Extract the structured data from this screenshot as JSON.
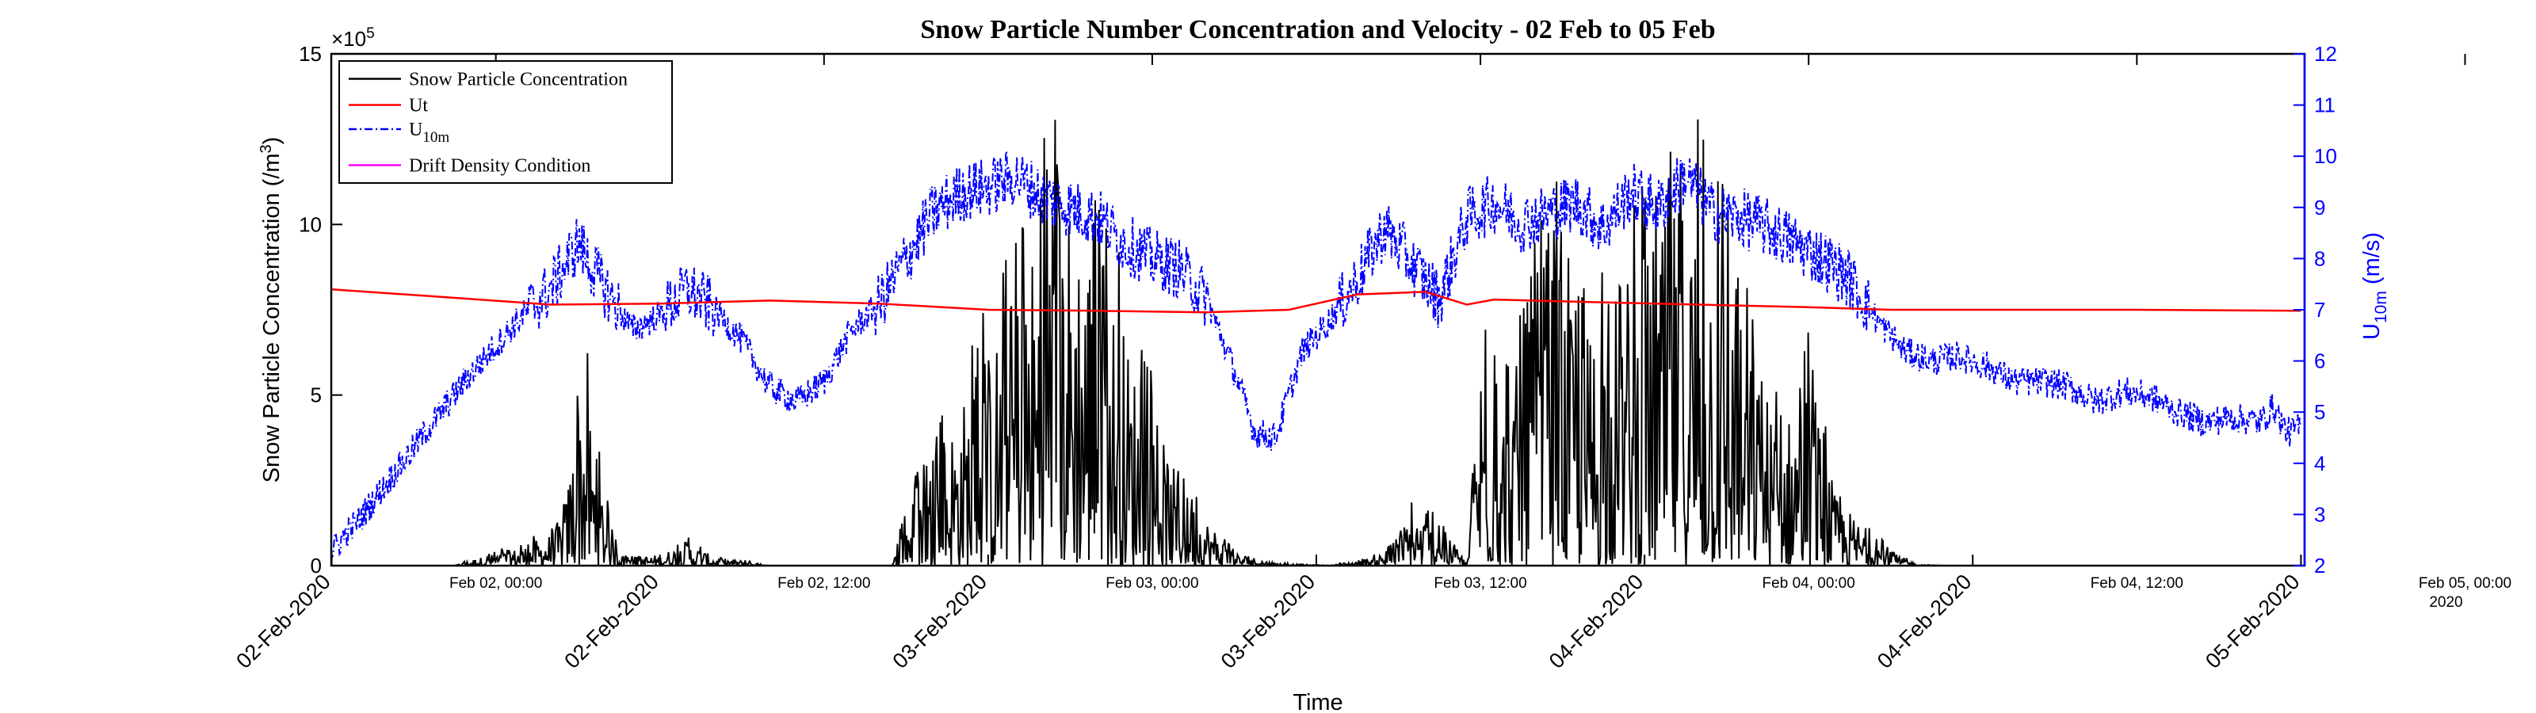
{
  "chart_data": {
    "type": "line",
    "title": "Snow Particle Number Concentration and Velocity - 02 Feb to 05 Feb",
    "xlabel": "Time",
    "x_range": [
      "2020-02-01T23:59",
      "2020-02-05T00:08"
    ],
    "x_ticks_bottom": [
      {
        "t": "2020-02-02T00:00",
        "label": "02-Feb-2020"
      },
      {
        "t": "2020-02-02T12:00",
        "label": "02-Feb-2020"
      },
      {
        "t": "2020-02-03T00:00",
        "label": "03-Feb-2020"
      },
      {
        "t": "2020-02-03T12:00",
        "label": "03-Feb-2020"
      },
      {
        "t": "2020-02-04T00:00",
        "label": "04-Feb-2020"
      },
      {
        "t": "2020-02-04T12:00",
        "label": "04-Feb-2020"
      },
      {
        "t": "2020-02-05T00:00",
        "label": "05-Feb-2020"
      }
    ],
    "x_ticks_top": [
      {
        "t": "2020-02-02T06:00",
        "label": "Feb 02, 00:00"
      },
      {
        "t": "2020-02-02T18:00",
        "label": "Feb 02, 12:00"
      },
      {
        "t": "2020-02-03T06:00",
        "label": "Feb 03, 00:00"
      },
      {
        "t": "2020-02-03T18:00",
        "label": "Feb 03, 12:00"
      },
      {
        "t": "2020-02-04T06:00",
        "label": "Feb 04, 00:00"
      },
      {
        "t": "2020-02-04T18:00",
        "label": "Feb 04, 12:00"
      },
      {
        "t": "2020-02-05T06:00",
        "label": "Feb 05, 00:00"
      }
    ],
    "x_top_year": "2020",
    "y_left": {
      "label": "Snow Particle Concentration (/m",
      "label_sup": "3",
      "label_end": ")",
      "ylim": [
        0,
        1500000
      ],
      "multiplier_base": "×10",
      "multiplier_exp": "5",
      "ticks": [
        {
          "v": 0,
          "label": "0"
        },
        {
          "v": 500000,
          "label": "5"
        },
        {
          "v": 1000000,
          "label": "10"
        },
        {
          "v": 1500000,
          "label": "15"
        }
      ]
    },
    "y_right": {
      "label": "U",
      "label_sub": "10m",
      "label_end": " (m/s)",
      "ylim": [
        2,
        12
      ],
      "ticks": [
        2,
        3,
        4,
        5,
        6,
        7,
        8,
        9,
        10,
        11,
        12
      ],
      "color": "#0000ff"
    },
    "legend": {
      "position": "top-left",
      "entries": [
        {
          "name": "Snow Particle Concentration",
          "color": "#000000",
          "style": "solid"
        },
        {
          "name": "Ut",
          "color": "#ff0000",
          "style": "solid"
        },
        {
          "name": "U",
          "sub": "10m",
          "color": "#0000ff",
          "style": "dashdot"
        },
        {
          "name": "Drift Density Condition",
          "color": "#ff00ff",
          "style": "solid"
        }
      ]
    },
    "series": [
      {
        "name": "Snow Particle Concentration",
        "axis": "left",
        "color": "#000000",
        "envelope": [
          {
            "t": "2020-02-02T00:00",
            "v": 0
          },
          {
            "t": "2020-02-02T04:30",
            "v": 0
          },
          {
            "t": "2020-02-02T05:00",
            "v": 20000
          },
          {
            "t": "2020-02-02T07:00",
            "v": 70000
          },
          {
            "t": "2020-02-02T08:00",
            "v": 120000
          },
          {
            "t": "2020-02-02T08:30",
            "v": 200000
          },
          {
            "t": "2020-02-02T09:10",
            "v": 750000
          },
          {
            "t": "2020-02-02T09:45",
            "v": 350000
          },
          {
            "t": "2020-02-02T10:30",
            "v": 30000
          },
          {
            "t": "2020-02-02T12:00",
            "v": 40000
          },
          {
            "t": "2020-02-02T13:00",
            "v": 90000
          },
          {
            "t": "2020-02-02T14:00",
            "v": 30000
          },
          {
            "t": "2020-02-02T15:00",
            "v": 20000
          },
          {
            "t": "2020-02-02T16:00",
            "v": 0
          },
          {
            "t": "2020-02-02T20:30",
            "v": 0
          },
          {
            "t": "2020-02-02T21:00",
            "v": 200000
          },
          {
            "t": "2020-02-02T23:00",
            "v": 600000
          },
          {
            "t": "2020-02-03T00:30",
            "v": 900000
          },
          {
            "t": "2020-02-03T02:00",
            "v": 1300000
          },
          {
            "t": "2020-02-03T03:00",
            "v": 1370000
          },
          {
            "t": "2020-02-03T04:00",
            "v": 1200000
          },
          {
            "t": "2020-02-03T05:30",
            "v": 700000
          },
          {
            "t": "2020-02-03T07:00",
            "v": 300000
          },
          {
            "t": "2020-02-03T09:00",
            "v": 50000
          },
          {
            "t": "2020-02-03T10:30",
            "v": 10000
          },
          {
            "t": "2020-02-03T12:30",
            "v": 0
          },
          {
            "t": "2020-02-03T14:30",
            "v": 40000
          },
          {
            "t": "2020-02-03T15:30",
            "v": 200000
          },
          {
            "t": "2020-02-03T16:30",
            "v": 150000
          },
          {
            "t": "2020-02-03T17:30",
            "v": 0
          },
          {
            "t": "2020-02-03T18:00",
            "v": 800000
          },
          {
            "t": "2020-02-03T19:00",
            "v": 600000
          },
          {
            "t": "2020-02-03T20:30",
            "v": 1270000
          },
          {
            "t": "2020-02-03T21:30",
            "v": 800000
          },
          {
            "t": "2020-02-03T22:30",
            "v": 1000000
          },
          {
            "t": "2020-02-04T00:00",
            "v": 1150000
          },
          {
            "t": "2020-02-04T01:30",
            "v": 1400000
          },
          {
            "t": "2020-02-04T02:30",
            "v": 1300000
          },
          {
            "t": "2020-02-04T03:30",
            "v": 900000
          },
          {
            "t": "2020-02-04T05:00",
            "v": 500000
          },
          {
            "t": "2020-02-04T06:00",
            "v": 700000
          },
          {
            "t": "2020-02-04T07:00",
            "v": 250000
          },
          {
            "t": "2020-02-04T08:00",
            "v": 150000
          },
          {
            "t": "2020-02-04T09:00",
            "v": 50000
          },
          {
            "t": "2020-02-04T10:00",
            "v": 5000
          },
          {
            "t": "2020-02-04T11:00",
            "v": 0
          },
          {
            "t": "2020-02-05T00:00",
            "v": 0
          }
        ]
      },
      {
        "name": "Ut",
        "axis": "right",
        "color": "#ff0000",
        "points": [
          {
            "t": "2020-02-02T00:00",
            "v": 7.4
          },
          {
            "t": "2020-02-02T04:00",
            "v": 7.25
          },
          {
            "t": "2020-02-02T08:00",
            "v": 7.1
          },
          {
            "t": "2020-02-02T12:00",
            "v": 7.12
          },
          {
            "t": "2020-02-02T16:00",
            "v": 7.18
          },
          {
            "t": "2020-02-02T20:00",
            "v": 7.12
          },
          {
            "t": "2020-02-03T00:00",
            "v": 7.0
          },
          {
            "t": "2020-02-03T04:00",
            "v": 6.98
          },
          {
            "t": "2020-02-03T08:00",
            "v": 6.95
          },
          {
            "t": "2020-02-03T11:00",
            "v": 7.0
          },
          {
            "t": "2020-02-03T13:30",
            "v": 7.3
          },
          {
            "t": "2020-02-03T16:00",
            "v": 7.35
          },
          {
            "t": "2020-02-03T17:30",
            "v": 7.1
          },
          {
            "t": "2020-02-03T18:30",
            "v": 7.2
          },
          {
            "t": "2020-02-03T22:00",
            "v": 7.15
          },
          {
            "t": "2020-02-04T02:00",
            "v": 7.1
          },
          {
            "t": "2020-02-04T06:00",
            "v": 7.05
          },
          {
            "t": "2020-02-04T09:00",
            "v": 7.0
          },
          {
            "t": "2020-02-04T14:00",
            "v": 7.0
          },
          {
            "t": "2020-02-04T18:00",
            "v": 7.0
          },
          {
            "t": "2020-02-05T00:00",
            "v": 6.98
          }
        ]
      },
      {
        "name": "U10m",
        "axis": "right",
        "color": "#0000ff",
        "style": "dashdot",
        "points": [
          {
            "t": "2020-02-02T00:00",
            "v": 2.3
          },
          {
            "t": "2020-02-02T01:00",
            "v": 2.9
          },
          {
            "t": "2020-02-02T02:00",
            "v": 3.6
          },
          {
            "t": "2020-02-02T03:00",
            "v": 4.3
          },
          {
            "t": "2020-02-02T04:00",
            "v": 5.0
          },
          {
            "t": "2020-02-02T05:00",
            "v": 5.7
          },
          {
            "t": "2020-02-02T06:00",
            "v": 6.3
          },
          {
            "t": "2020-02-02T07:00",
            "v": 6.9
          },
          {
            "t": "2020-02-02T08:00",
            "v": 7.4
          },
          {
            "t": "2020-02-02T09:00",
            "v": 8.3
          },
          {
            "t": "2020-02-02T10:00",
            "v": 7.4
          },
          {
            "t": "2020-02-02T11:00",
            "v": 6.6
          },
          {
            "t": "2020-02-02T12:00",
            "v": 6.9
          },
          {
            "t": "2020-02-02T13:00",
            "v": 7.4
          },
          {
            "t": "2020-02-02T14:00",
            "v": 7.0
          },
          {
            "t": "2020-02-02T15:00",
            "v": 6.4
          },
          {
            "t": "2020-02-02T16:00",
            "v": 5.5
          },
          {
            "t": "2020-02-02T17:00",
            "v": 5.2
          },
          {
            "t": "2020-02-02T18:00",
            "v": 5.6
          },
          {
            "t": "2020-02-02T19:00",
            "v": 6.6
          },
          {
            "t": "2020-02-02T20:00",
            "v": 7.1
          },
          {
            "t": "2020-02-02T21:00",
            "v": 8.0
          },
          {
            "t": "2020-02-02T22:00",
            "v": 8.9
          },
          {
            "t": "2020-02-02T23:00",
            "v": 9.3
          },
          {
            "t": "2020-02-03T00:00",
            "v": 9.4
          },
          {
            "t": "2020-02-03T01:00",
            "v": 9.6
          },
          {
            "t": "2020-02-03T02:00",
            "v": 9.2
          },
          {
            "t": "2020-02-03T03:00",
            "v": 9.0
          },
          {
            "t": "2020-02-03T04:00",
            "v": 8.8
          },
          {
            "t": "2020-02-03T05:00",
            "v": 8.3
          },
          {
            "t": "2020-02-03T06:00",
            "v": 8.0
          },
          {
            "t": "2020-02-03T07:00",
            "v": 7.8
          },
          {
            "t": "2020-02-03T08:00",
            "v": 7.2
          },
          {
            "t": "2020-02-03T09:00",
            "v": 5.8
          },
          {
            "t": "2020-02-03T09:45",
            "v": 4.6
          },
          {
            "t": "2020-02-03T10:30",
            "v": 4.5
          },
          {
            "t": "2020-02-03T11:30",
            "v": 6.2
          },
          {
            "t": "2020-02-03T12:30",
            "v": 6.8
          },
          {
            "t": "2020-02-03T13:30",
            "v": 7.6
          },
          {
            "t": "2020-02-03T14:30",
            "v": 8.6
          },
          {
            "t": "2020-02-03T15:30",
            "v": 7.9
          },
          {
            "t": "2020-02-03T16:30",
            "v": 7.2
          },
          {
            "t": "2020-02-03T17:30",
            "v": 8.8
          },
          {
            "t": "2020-02-03T18:30",
            "v": 9.1
          },
          {
            "t": "2020-02-03T19:30",
            "v": 8.7
          },
          {
            "t": "2020-02-03T20:30",
            "v": 8.9
          },
          {
            "t": "2020-02-03T21:30",
            "v": 9.1
          },
          {
            "t": "2020-02-03T22:30",
            "v": 8.6
          },
          {
            "t": "2020-02-03T23:30",
            "v": 9.3
          },
          {
            "t": "2020-02-04T00:30",
            "v": 9.0
          },
          {
            "t": "2020-02-04T01:30",
            "v": 9.6
          },
          {
            "t": "2020-02-04T02:30",
            "v": 8.9
          },
          {
            "t": "2020-02-04T03:30",
            "v": 8.8
          },
          {
            "t": "2020-02-04T04:30",
            "v": 8.6
          },
          {
            "t": "2020-02-04T05:30",
            "v": 8.3
          },
          {
            "t": "2020-02-04T06:30",
            "v": 8.0
          },
          {
            "t": "2020-02-04T07:30",
            "v": 7.6
          },
          {
            "t": "2020-02-04T08:30",
            "v": 6.8
          },
          {
            "t": "2020-02-04T09:30",
            "v": 6.2
          },
          {
            "t": "2020-02-04T10:30",
            "v": 6.0
          },
          {
            "t": "2020-02-04T11:30",
            "v": 6.1
          },
          {
            "t": "2020-02-04T12:30",
            "v": 5.9
          },
          {
            "t": "2020-02-04T13:30",
            "v": 5.6
          },
          {
            "t": "2020-02-04T14:30",
            "v": 5.6
          },
          {
            "t": "2020-02-04T15:30",
            "v": 5.5
          },
          {
            "t": "2020-02-04T16:30",
            "v": 5.2
          },
          {
            "t": "2020-02-04T17:30",
            "v": 5.4
          },
          {
            "t": "2020-02-04T18:30",
            "v": 5.3
          },
          {
            "t": "2020-02-04T19:30",
            "v": 5.0
          },
          {
            "t": "2020-02-04T20:30",
            "v": 4.8
          },
          {
            "t": "2020-02-04T21:30",
            "v": 4.9
          },
          {
            "t": "2020-02-04T22:30",
            "v": 4.8
          },
          {
            "t": "2020-02-04T23:00",
            "v": 5.1
          },
          {
            "t": "2020-02-04T23:30",
            "v": 4.6
          },
          {
            "t": "2020-02-05T00:00",
            "v": 4.7
          }
        ]
      }
    ]
  }
}
